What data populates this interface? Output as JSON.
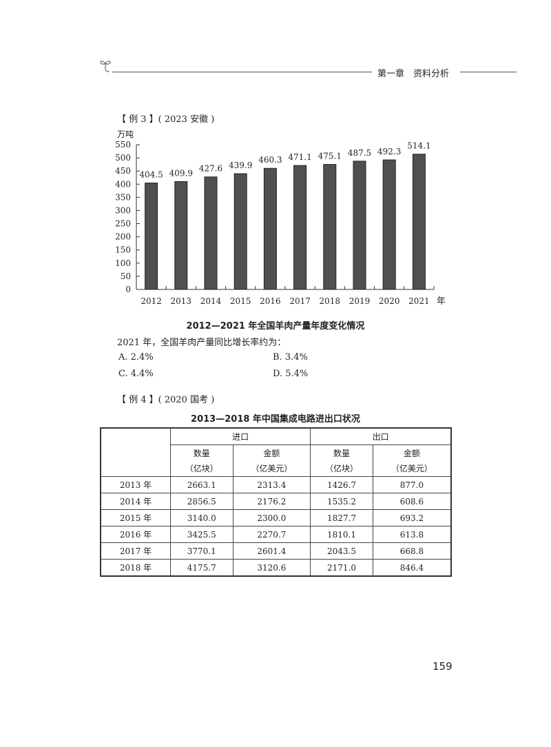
{
  "header": {
    "chapter": "第一章　资料分析",
    "icon": "sprout-icon"
  },
  "example3": {
    "label": "【 例 3 】( 2023  安徽 )",
    "chart_caption": "2012—2021 年全国羊肉产量年度变化情况",
    "question": "2021 年，全国羊肉产量同比增长率约为：",
    "options": [
      "A. 2.4%",
      "B. 3.4%",
      "C. 4.4%",
      "D. 5.4%"
    ]
  },
  "chart_data": {
    "type": "bar",
    "title": "2012—2021 年全国羊肉产量年度变化情况",
    "ylabel": "万吨",
    "xlabel": "年",
    "categories": [
      "2012",
      "2013",
      "2014",
      "2015",
      "2016",
      "2017",
      "2018",
      "2019",
      "2020",
      "2021"
    ],
    "values": [
      404.5,
      409.9,
      427.6,
      439.9,
      460.3,
      471.1,
      475.1,
      487.5,
      492.3,
      514.1
    ],
    "ylim": [
      0,
      550
    ],
    "yticks": [
      0,
      50,
      100,
      150,
      200,
      250,
      300,
      350,
      400,
      450,
      500,
      550
    ],
    "grid": false,
    "bar_color": "#505050"
  },
  "example4": {
    "label": "【 例 4 】( 2020  国考 )",
    "table_title": "2013—2018 年中国集成电路进出口状况",
    "groups": [
      "进口",
      "出口"
    ],
    "subheaders": [
      [
        "数量",
        "（亿块）"
      ],
      [
        "金额",
        "（亿美元）"
      ],
      [
        "数量",
        "（亿块）"
      ],
      [
        "金额",
        "（亿美元）"
      ]
    ],
    "rows": [
      [
        "2013 年",
        "2663.1",
        "2313.4",
        "1426.7",
        "877.0"
      ],
      [
        "2014 年",
        "2856.5",
        "2176.2",
        "1535.2",
        "608.6"
      ],
      [
        "2015 年",
        "3140.0",
        "2300.0",
        "1827.7",
        "693.2"
      ],
      [
        "2016 年",
        "3425.5",
        "2270.7",
        "1810.1",
        "613.8"
      ],
      [
        "2017 年",
        "3770.1",
        "2601.4",
        "2043.5",
        "668.8"
      ],
      [
        "2018 年",
        "4175.7",
        "3120.6",
        "2171.0",
        "846.4"
      ]
    ]
  },
  "page_number": "159"
}
